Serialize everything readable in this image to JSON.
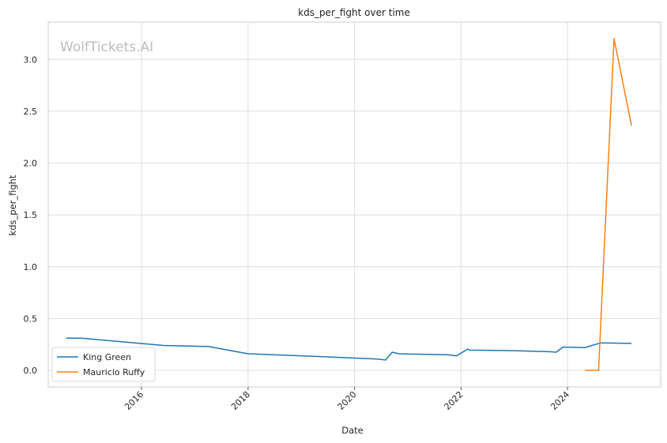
{
  "chart_data": {
    "type": "line",
    "title": "kds_per_fight over time",
    "xlabel": "Date",
    "ylabel": "kds_per_fight",
    "watermark": "WolfTickets.AI",
    "xlim": [
      "2014-04-01",
      "2025-10-01"
    ],
    "ylim": [
      -0.16,
      3.36
    ],
    "x_ticks": [
      "2016",
      "2018",
      "2020",
      "2022",
      "2024"
    ],
    "y_ticks": [
      "0.0",
      "0.5",
      "1.0",
      "1.5",
      "2.0",
      "2.5",
      "3.0"
    ],
    "grid": true,
    "legend_position": "lower-left",
    "series": [
      {
        "name": "King Green",
        "color": "#1f77b4",
        "points": [
          [
            "2014-08-01",
            0.31
          ],
          [
            "2014-11-15",
            0.31
          ],
          [
            "2016-06-01",
            0.24
          ],
          [
            "2017-04-01",
            0.23
          ],
          [
            "2018-01-01",
            0.16
          ],
          [
            "2019-04-01",
            0.135
          ],
          [
            "2020-06-01",
            0.11
          ],
          [
            "2020-08-01",
            0.1
          ],
          [
            "2020-09-15",
            0.175
          ],
          [
            "2020-11-01",
            0.16
          ],
          [
            "2021-10-01",
            0.15
          ],
          [
            "2021-12-01",
            0.14
          ],
          [
            "2022-02-15",
            0.205
          ],
          [
            "2022-03-01",
            0.195
          ],
          [
            "2023-01-01",
            0.19
          ],
          [
            "2023-09-01",
            0.18
          ],
          [
            "2023-10-15",
            0.175
          ],
          [
            "2023-12-01",
            0.225
          ],
          [
            "2024-05-01",
            0.22
          ],
          [
            "2024-08-15",
            0.265
          ],
          [
            "2025-03-15",
            0.26
          ]
        ]
      },
      {
        "name": "Mauricio Ruffy",
        "color": "#ff7f0e",
        "points": [
          [
            "2024-05-01",
            0.0
          ],
          [
            "2024-08-01",
            0.0
          ],
          [
            "2024-11-15",
            3.2
          ],
          [
            "2025-03-15",
            2.36
          ]
        ]
      }
    ]
  }
}
